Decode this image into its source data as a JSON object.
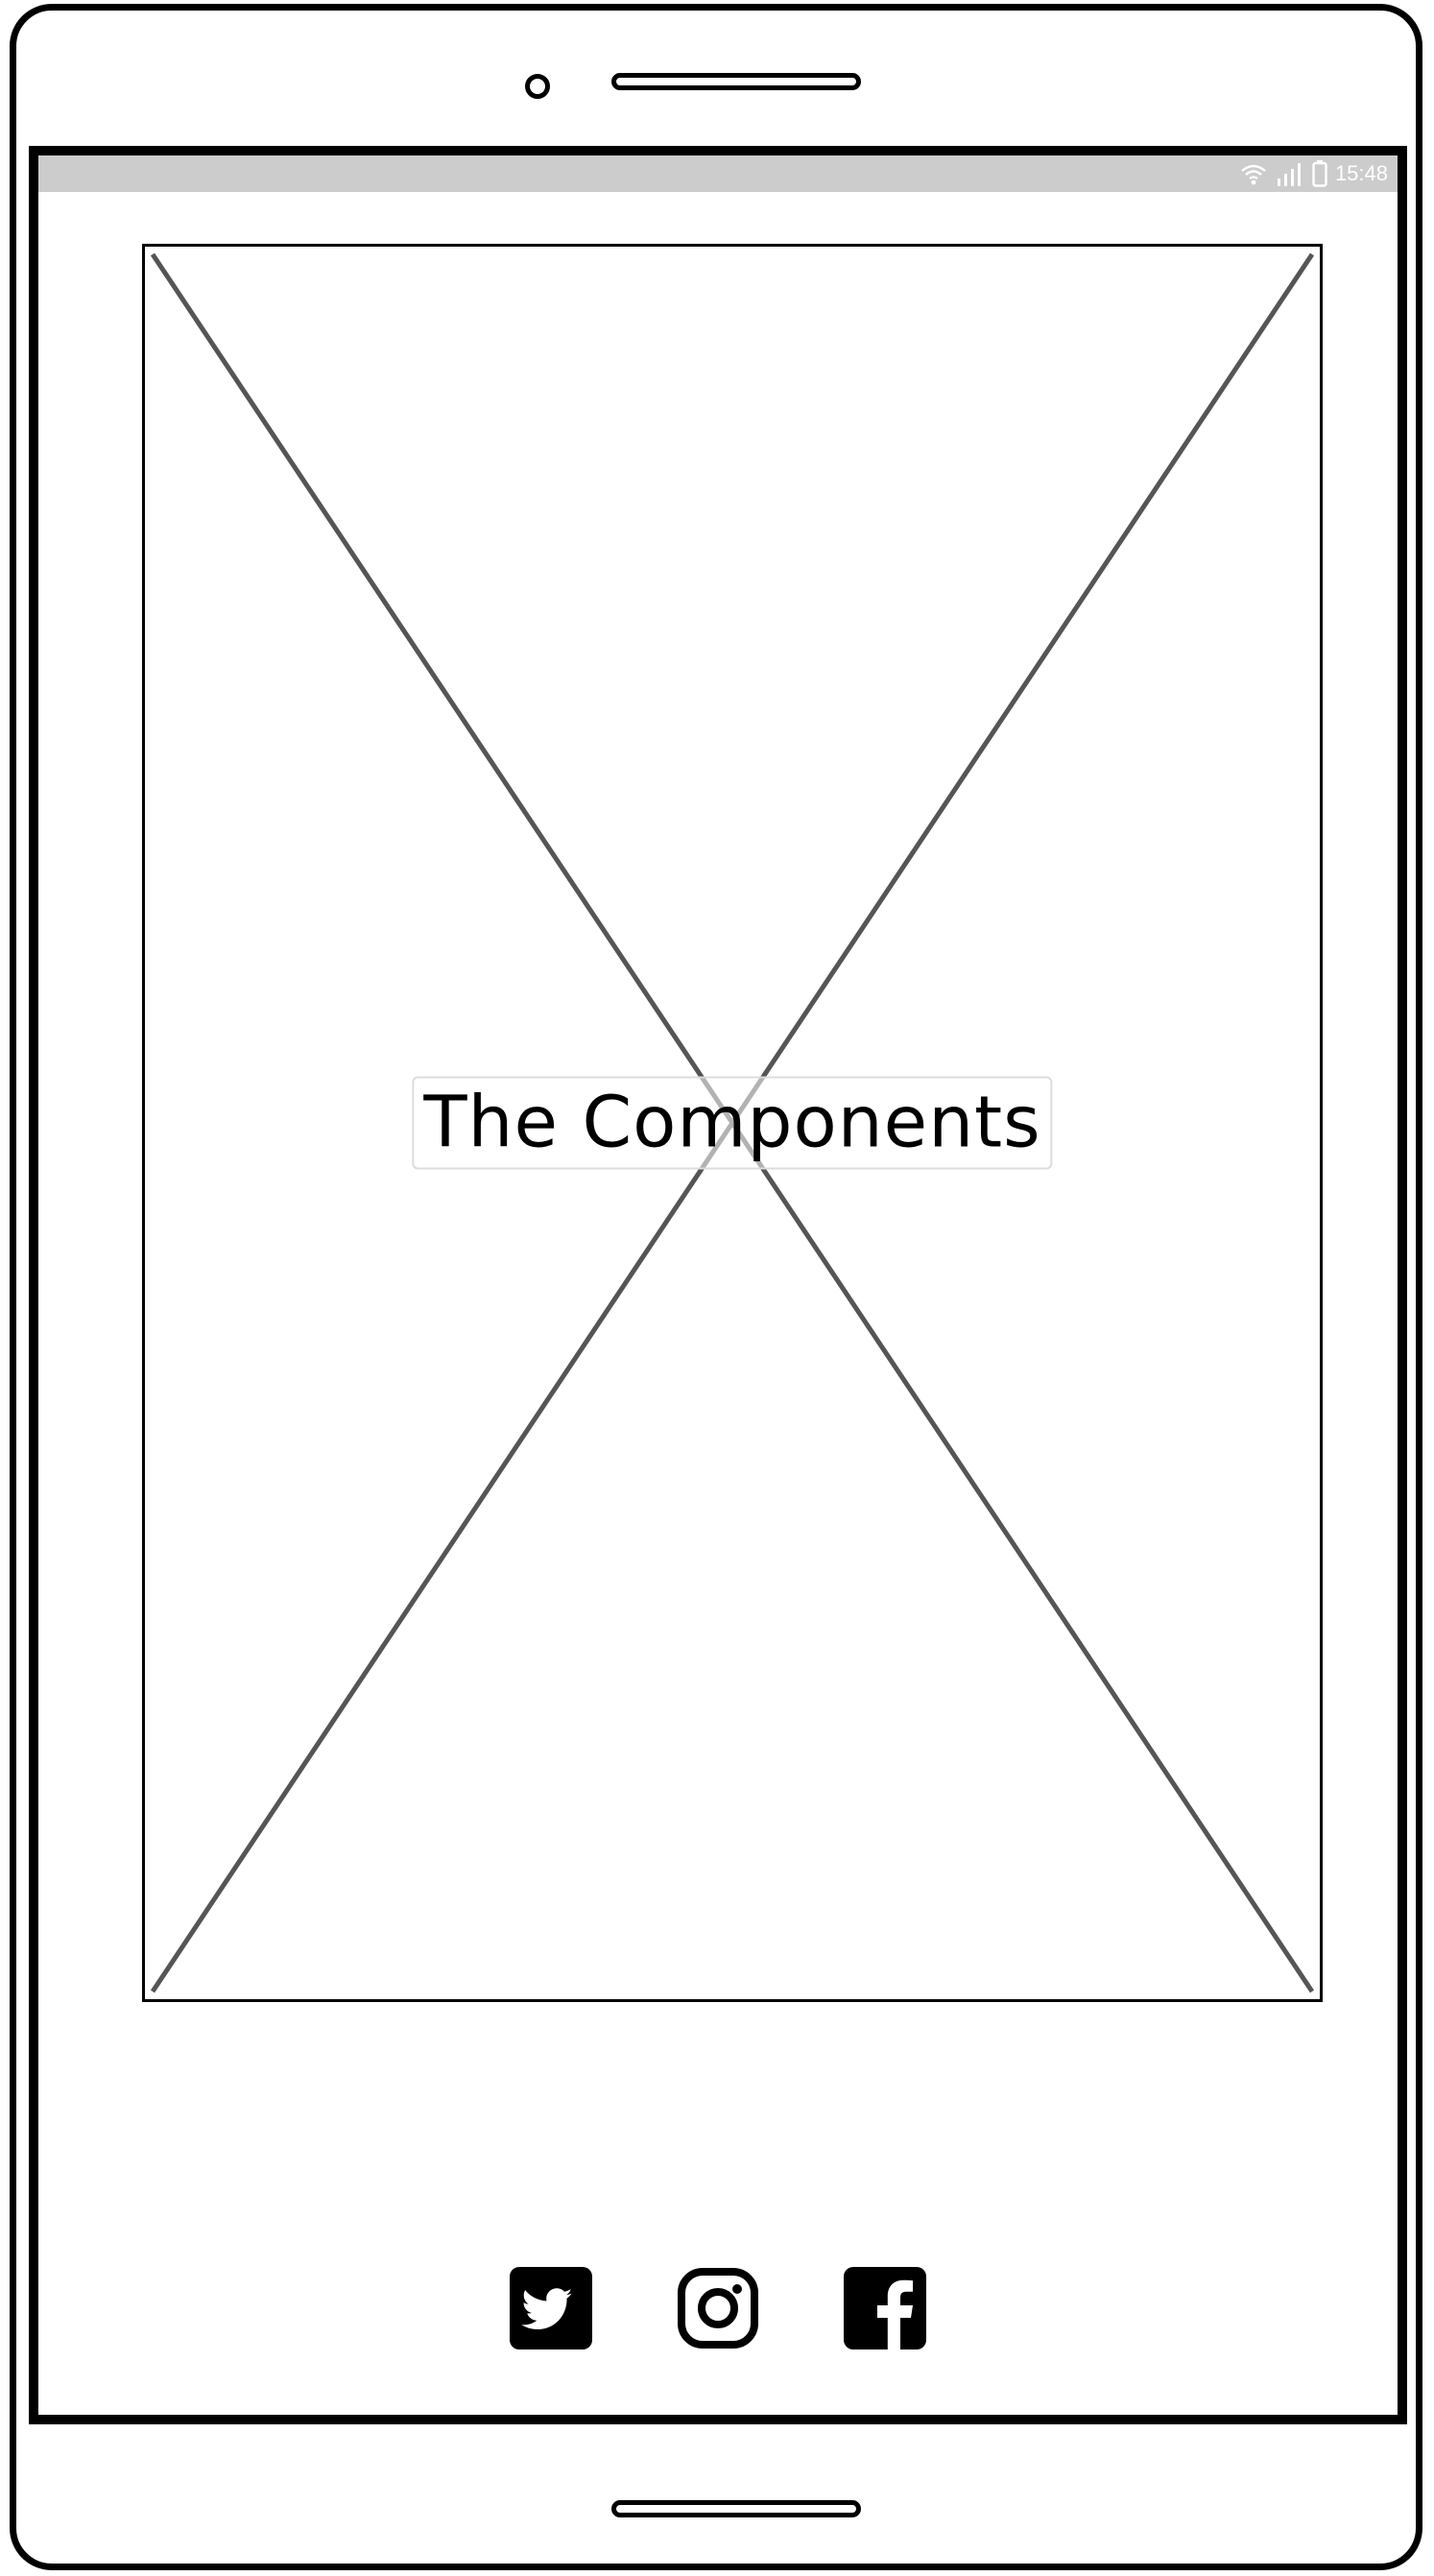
{
  "status_bar": {
    "time": "15:48",
    "icons": [
      "wifi-icon",
      "signal-icon",
      "battery-icon"
    ],
    "background": "#cccccc"
  },
  "hero": {
    "title": "The Components"
  },
  "social": [
    {
      "name": "twitter-icon"
    },
    {
      "name": "instagram-icon"
    },
    {
      "name": "facebook-icon"
    }
  ]
}
